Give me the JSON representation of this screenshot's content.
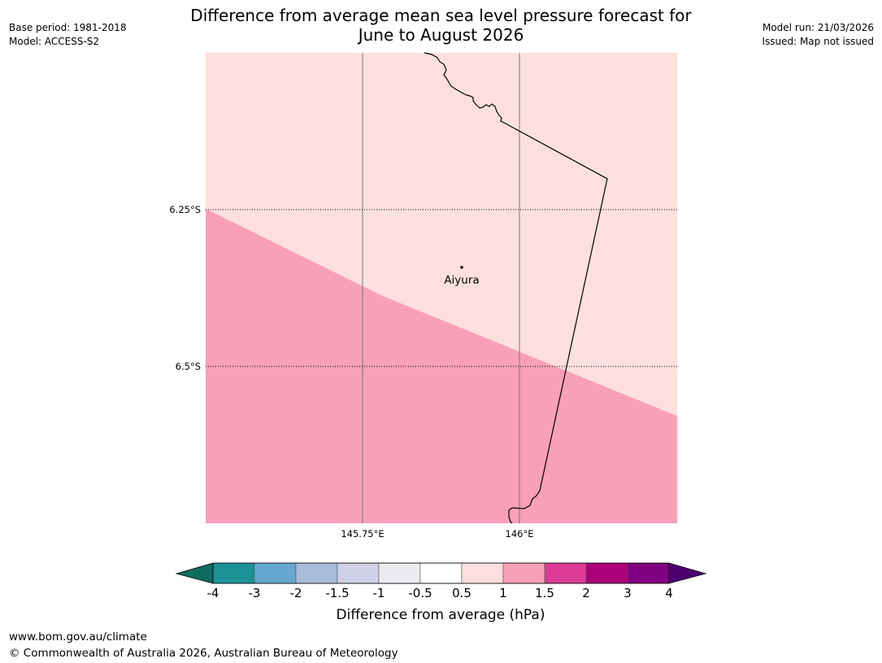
{
  "header": {
    "title": "Difference from average mean sea level pressure forecast for\nJune to August 2026",
    "base_period": "Base period: 1981-2018",
    "model": "Model: ACCESS-S2",
    "model_run": "Model run: 21/03/2026",
    "issued": "Issued: Map not issued"
  },
  "map": {
    "latitude_labels": [
      "6.25°S",
      "6.5°S"
    ],
    "longitude_labels": [
      "145.75°E",
      "146°E"
    ],
    "places": [
      {
        "name": "Aiyura"
      }
    ],
    "colors": {
      "lower_band": "#f8a0b8",
      "upper_band": "#fde0de",
      "coastline": "#000000",
      "meridian": "#777777"
    }
  },
  "colorbar": {
    "title": "Difference from average (hPa)",
    "ticks": [
      "-4",
      "-3",
      "-2",
      "-1.5",
      "-1",
      "-0.5",
      "0.5",
      "1",
      "1.5",
      "2",
      "3",
      "4"
    ],
    "low_extend_color": "#0e6b5e",
    "high_extend_color": "#4c0070",
    "colors": [
      "#1a9296",
      "#66a8d0",
      "#a8bcdc",
      "#d0d0e6",
      "#ececf0",
      "#ffffff",
      "#fde0de",
      "#f8a0b8",
      "#dc3c98",
      "#ac0078",
      "#800082"
    ]
  },
  "footer": {
    "website": "www.bom.gov.au/climate",
    "copyright": "© Commonwealth of Australia 2026, Australian Bureau of Meteorology"
  }
}
